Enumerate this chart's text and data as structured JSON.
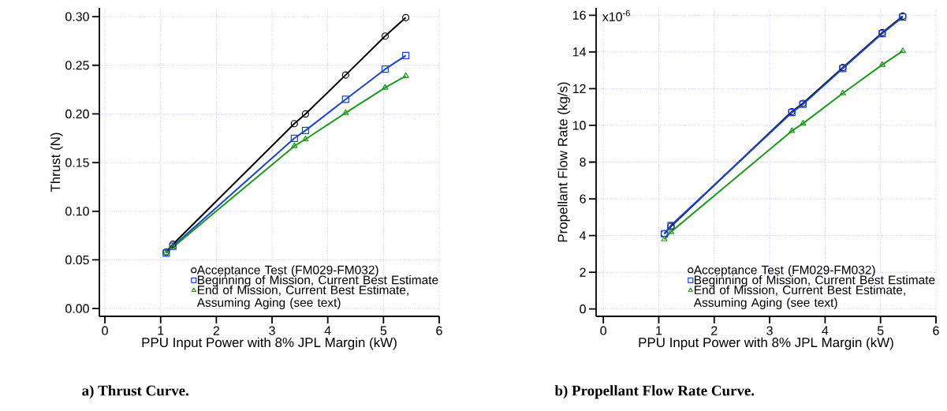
{
  "chart_data": [
    {
      "type": "line",
      "xlabel": "PPU Input Power with 8% JPL Margin (kW)",
      "ylabel": "Thrust (N)",
      "xlim": [
        -0.1,
        6
      ],
      "ylim": [
        -0.008,
        0.309
      ],
      "xticks": [
        0,
        1,
        2,
        3,
        4,
        5,
        6
      ],
      "yticks": [
        {
          "value": 0,
          "label": "0.00"
        },
        {
          "value": 0.05,
          "label": "0.05"
        },
        {
          "value": 0.1,
          "label": "0.10"
        },
        {
          "value": 0.15,
          "label": "0.15"
        },
        {
          "value": 0.2,
          "label": "0.20"
        },
        {
          "value": 0.25,
          "label": "0.25"
        },
        {
          "value": 0.3,
          "label": "0.30"
        }
      ],
      "grid": true,
      "legend": "bottom right",
      "x": [
        1.1,
        1.22,
        3.4,
        3.6,
        4.32,
        5.03,
        5.4
      ],
      "series": [
        {
          "name": "Acceptance Test (FM029-FM032)",
          "color": "#000000",
          "marker": "circle",
          "values": [
            0.058,
            0.066,
            0.19,
            0.2,
            0.24,
            0.28,
            0.299
          ]
        },
        {
          "name": "Beginning of Mission, Current Best Estimate",
          "color": "#1a44d6",
          "marker": "square",
          "values": [
            0.057,
            0.064,
            0.175,
            0.183,
            0.215,
            0.246,
            0.26
          ]
        },
        {
          "name": "End of Mission, Current Best Estimate, Assuming Aging (see text)",
          "color": "#1a9a1a",
          "marker": "triangle",
          "values": [
            0.057,
            0.063,
            0.167,
            0.174,
            0.201,
            0.227,
            0.239
          ]
        }
      ],
      "annotations": [
        "a) Thrust Curve."
      ]
    },
    {
      "type": "line",
      "xlabel": "PPU Input Power with 8% JPL Margin (kW)",
      "ylabel": "Propellant Flow Rate (kg/s)",
      "xlim": [
        -0.13,
        6
      ],
      "ylim": [
        -0.4,
        16.4
      ],
      "xticks": [
        0,
        1,
        2,
        3,
        4,
        5,
        6
      ],
      "yticks": [
        0,
        2,
        4,
        6,
        8,
        10,
        12,
        14,
        16
      ],
      "grid": true,
      "legend": "bottom right",
      "x": [
        1.1,
        1.22,
        3.4,
        3.6,
        4.32,
        5.03,
        5.4
      ],
      "series": [
        {
          "name": "Acceptance Test (FM029-FM032)",
          "color": "#000000",
          "marker": "circle",
          "values": [
            4.1,
            4.5,
            10.75,
            11.2,
            13.15,
            15.05,
            15.95
          ]
        },
        {
          "name": "Beginning of Mission, Current Best Estimate",
          "color": "#1a44d6",
          "marker": "square",
          "values": [
            4.1,
            4.55,
            10.7,
            11.15,
            13.1,
            15.0,
            15.9
          ]
        },
        {
          "name": "End of Mission, Current Best Estimate, Assuming Aging (see text)",
          "color": "#1a9a1a",
          "marker": "triangle",
          "values": [
            3.8,
            4.2,
            9.7,
            10.1,
            11.75,
            13.3,
            14.05
          ]
        }
      ],
      "annotations": [
        "x10$^{-6}$",
        "b) Propellant Flow Rate Curve."
      ]
    }
  ]
}
